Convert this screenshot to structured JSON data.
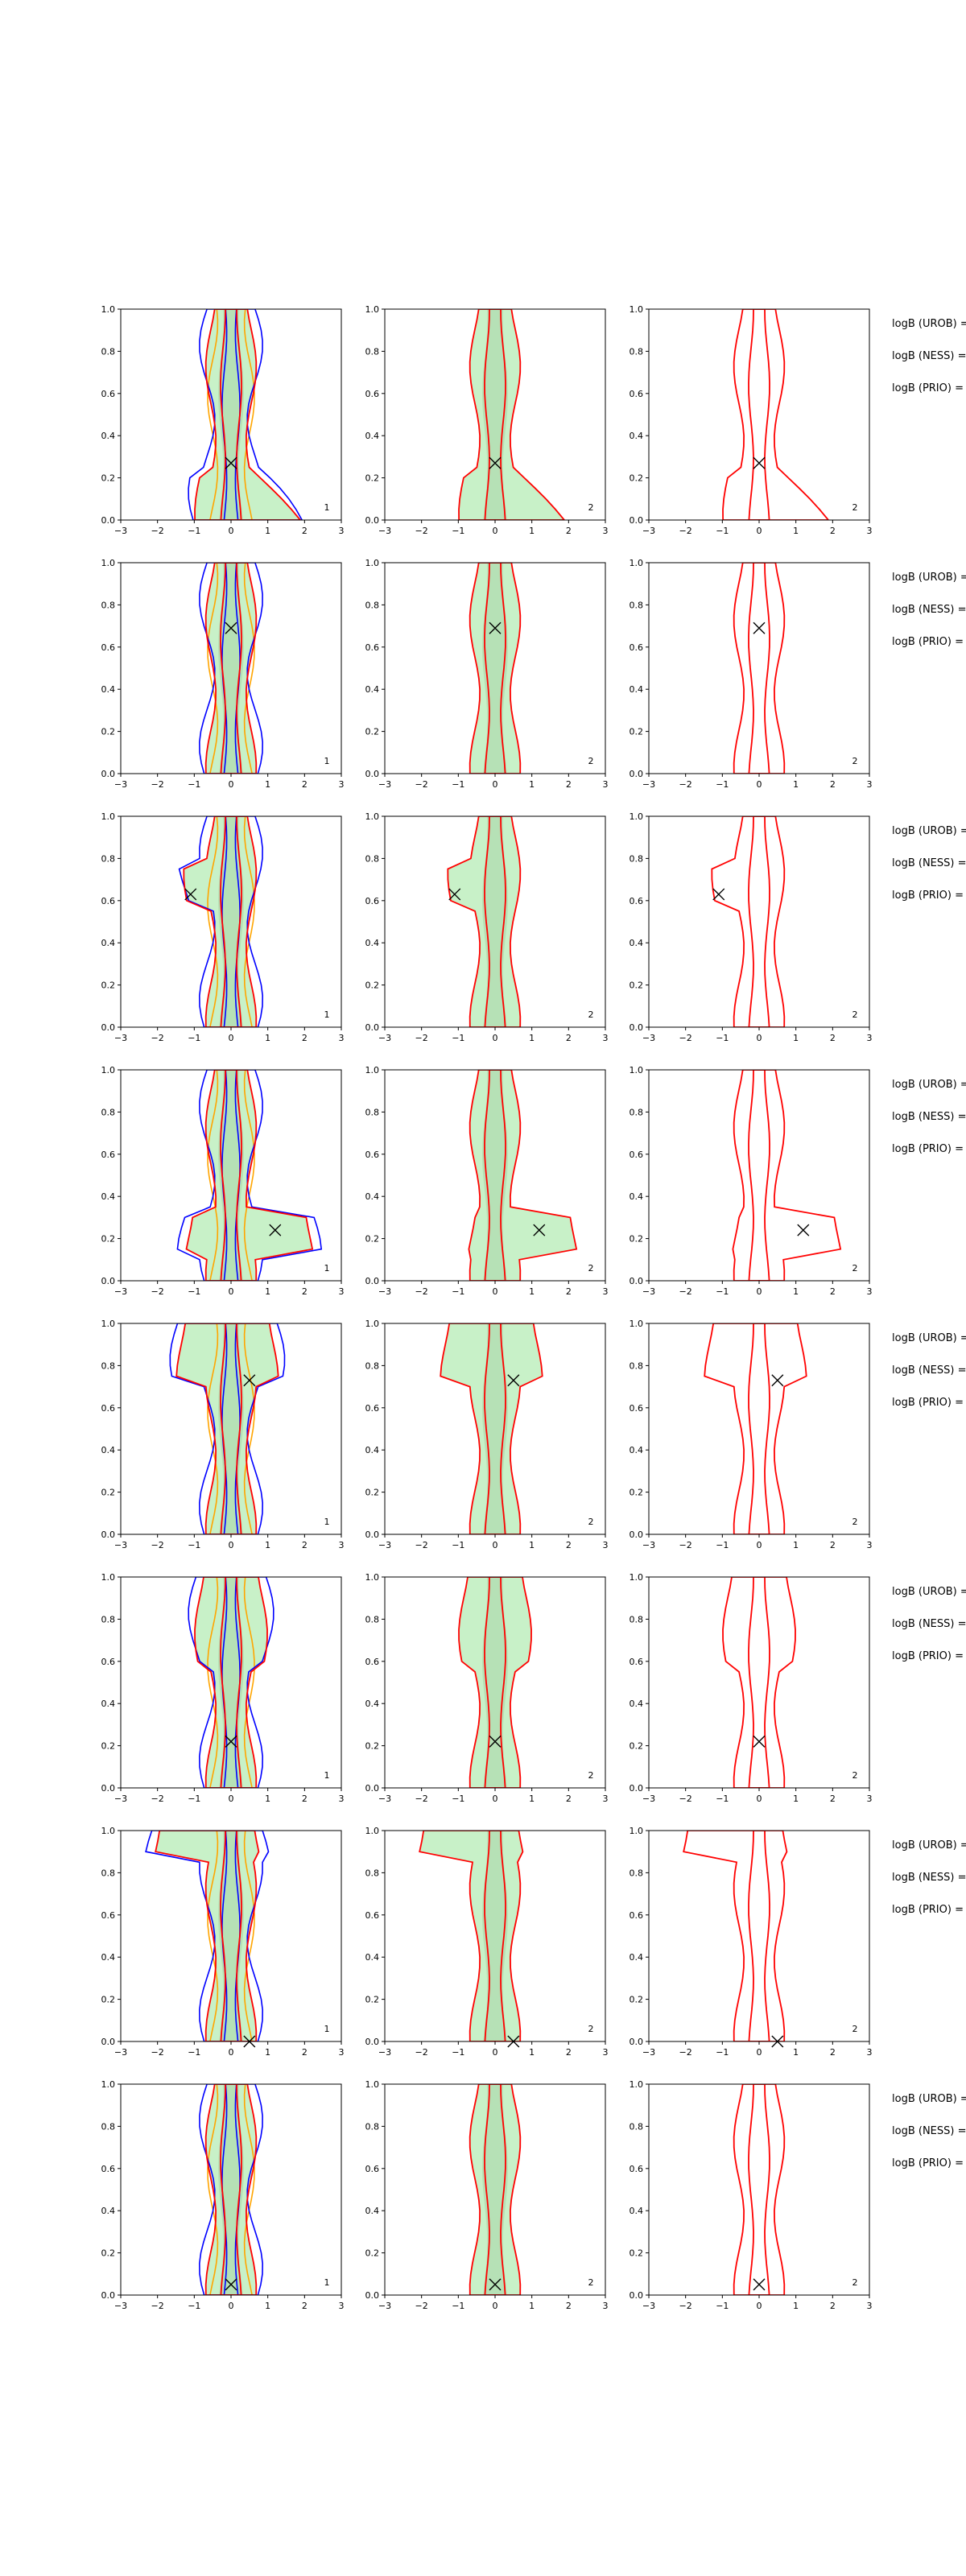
{
  "figure": {
    "side_labels": [
      "logB (UROB) =",
      "logB (NESS) =",
      "logB (PRIO) ="
    ],
    "colors": {
      "kde_fill": "#b6ecb6",
      "kde_dark": "#9fcf9f",
      "red": "#ff0000",
      "blue": "#0000ff",
      "orange": "#ffa500",
      "axis": "#000000"
    }
  },
  "chart_data": {
    "type": "contour",
    "xlim": [
      -3,
      3
    ],
    "ylim": [
      0.0,
      1.0
    ],
    "x_ticks": [
      "−3",
      "−2",
      "−1",
      "0",
      "1",
      "2",
      "3"
    ],
    "y_ticks": [
      "0.0",
      "0.2",
      "0.4",
      "0.6",
      "0.8",
      "1.0"
    ],
    "column_numbers": [
      "1",
      "2",
      "2"
    ],
    "rows": [
      {
        "marker": [
          0.0,
          0.27
        ],
        "shape": "wide-bottom-right"
      },
      {
        "marker": [
          0.0,
          0.69
        ],
        "shape": "narrow"
      },
      {
        "marker": [
          -1.1,
          0.63
        ],
        "shape": "left-bump-top"
      },
      {
        "marker": [
          1.2,
          0.24
        ],
        "shape": "right-arm-bottom"
      },
      {
        "marker": [
          0.5,
          0.73
        ],
        "shape": "wide-top"
      },
      {
        "marker": [
          0.0,
          0.22
        ],
        "shape": "top-heavy"
      },
      {
        "marker": [
          0.5,
          0.0
        ],
        "shape": "top-left-arm"
      },
      {
        "marker": [
          0.0,
          0.05
        ],
        "shape": "narrow"
      }
    ]
  }
}
